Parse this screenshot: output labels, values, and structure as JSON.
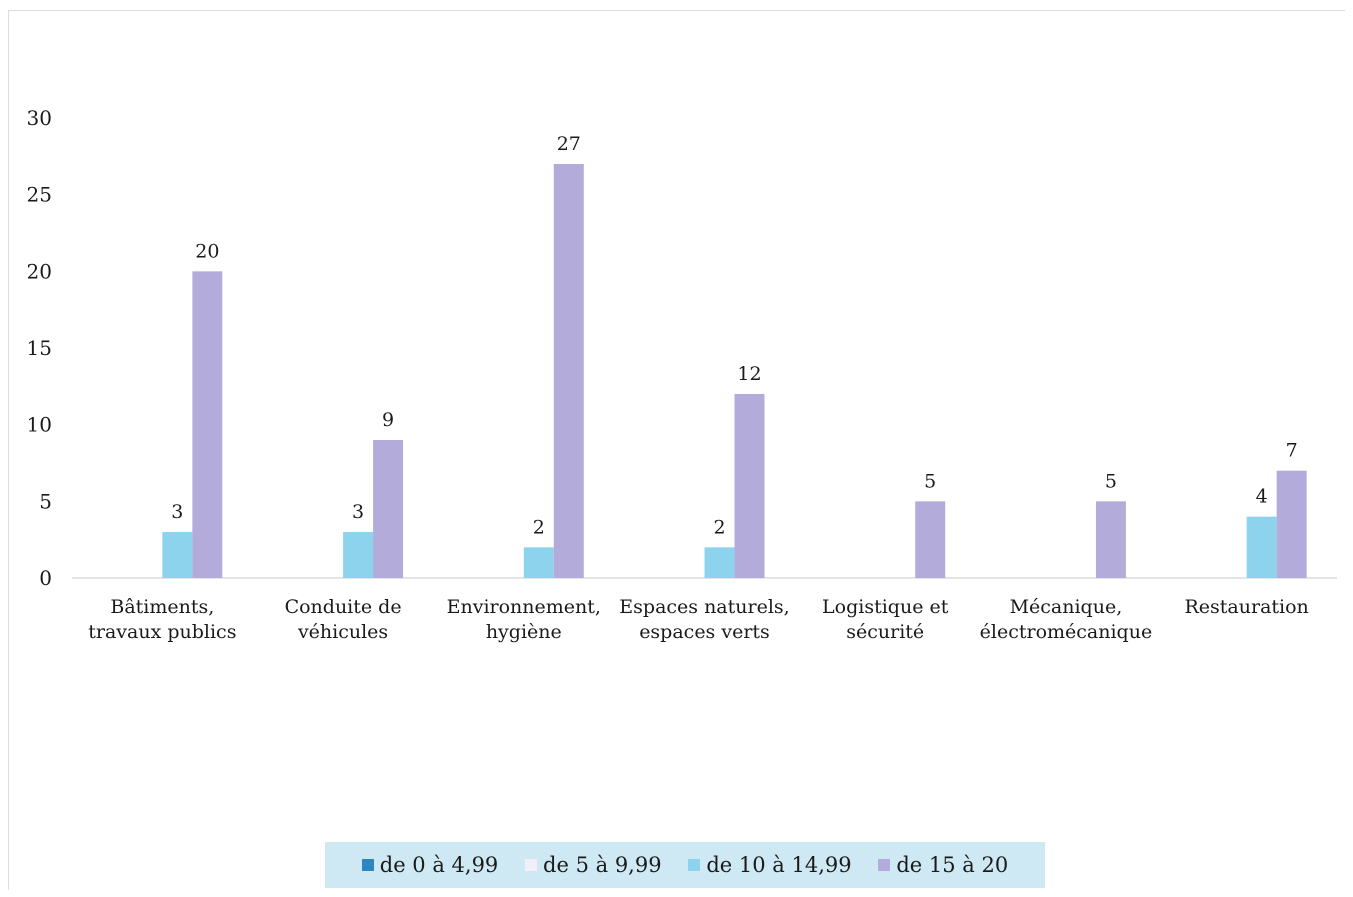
{
  "chart_data": {
    "type": "bar",
    "categories": [
      [
        "Bâtiments,",
        "travaux publics"
      ],
      [
        "Conduite de",
        "véhicules"
      ],
      [
        "Environnement,",
        "hygiène"
      ],
      [
        "Espaces naturels,",
        "espaces verts"
      ],
      [
        "Logistique et",
        "sécurité"
      ],
      [
        "Mécanique,",
        "électromécanique"
      ],
      [
        "Restauration"
      ]
    ],
    "series": [
      {
        "name": "de 0 à 4,99",
        "color": "#2e86c1",
        "values": [
          0,
          0,
          0,
          0,
          0,
          0,
          0
        ]
      },
      {
        "name": "de 5 à 9,99",
        "color": "#f4eef8",
        "values": [
          0,
          0,
          0,
          0,
          0,
          0,
          0
        ]
      },
      {
        "name": "de 10 à 14,99",
        "color": "#8ed3ee",
        "values": [
          3,
          3,
          2,
          2,
          0,
          0,
          4
        ]
      },
      {
        "name": "de 15 à 20",
        "color": "#b3acdb",
        "values": [
          20,
          9,
          27,
          12,
          5,
          5,
          7
        ]
      }
    ],
    "yticks": [
      0,
      5,
      10,
      15,
      20,
      25,
      30
    ],
    "ylim": [
      0,
      30
    ],
    "title": "",
    "xlabel": "",
    "ylabel": "",
    "grid": false,
    "legend_position": "bottom",
    "legend_background": "#cfe9f4"
  }
}
